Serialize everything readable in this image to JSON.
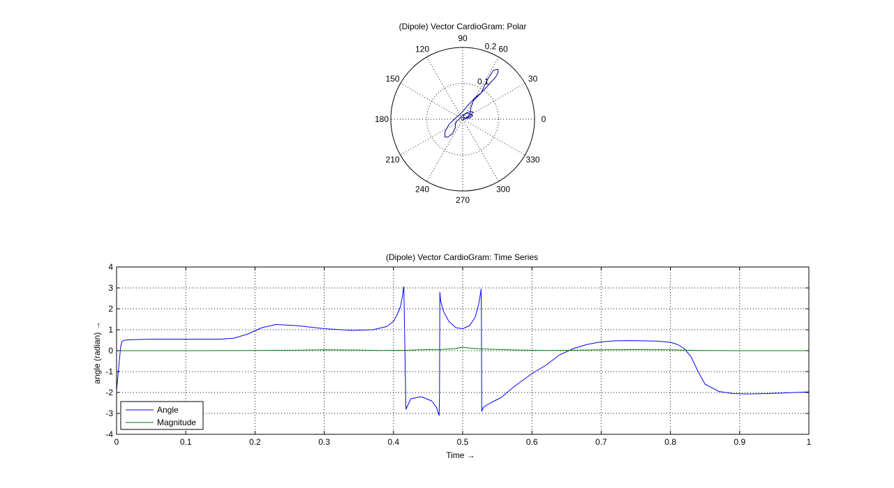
{
  "chart_data": [
    {
      "type": "polar",
      "title": "(Dipole) Vector CardioGram: Polar",
      "r_max": 0.2,
      "r_ticks": [
        0.1,
        0.2
      ],
      "r_tick_labels": [
        "0.1",
        "0.2"
      ],
      "angle_ticks": [
        0,
        30,
        60,
        90,
        120,
        150,
        180,
        210,
        240,
        270,
        300,
        330
      ],
      "angle_tick_labels": [
        "0",
        "30",
        "60",
        "90",
        "120",
        "150",
        "180",
        "210",
        "240",
        "270",
        "300",
        "330"
      ],
      "grid": true,
      "series": [
        {
          "color": "#00008b",
          "theta_deg": [
            0,
            5,
            15,
            25,
            35,
            45,
            60,
            70,
            75,
            72,
            55,
            35,
            20,
            10,
            20,
            25,
            35,
            55,
            60,
            55,
            53,
            52,
            53,
            55,
            58,
            58,
            57,
            56,
            55,
            60,
            70,
            100,
            170,
            200,
            215,
            225,
            230,
            235,
            228,
            215,
            200,
            180,
            100,
            60,
            45,
            35,
            25,
            10
          ],
          "r": [
            0.0,
            0.008,
            0.01,
            0.009,
            0.008,
            0.006,
            0.004,
            0.005,
            0.01,
            0.015,
            0.02,
            0.025,
            0.03,
            0.02,
            0.01,
            0.015,
            0.025,
            0.04,
            0.06,
            0.09,
            0.12,
            0.15,
            0.165,
            0.17,
            0.16,
            0.13,
            0.11,
            0.1,
            0.09,
            0.07,
            0.04,
            0.018,
            0.02,
            0.04,
            0.06,
            0.07,
            0.065,
            0.05,
            0.03,
            0.025,
            0.02,
            0.01,
            0.01,
            0.02,
            0.03,
            0.035,
            0.025,
            0.01
          ]
        }
      ]
    },
    {
      "type": "line",
      "title": "(Dipole) Vector CardioGram: Time Series",
      "xlabel": "Time →",
      "ylabel": "angle (radian) →",
      "xlim": [
        0,
        1
      ],
      "ylim": [
        -4,
        4
      ],
      "xticks": [
        0,
        0.1,
        0.2,
        0.3,
        0.4,
        0.5,
        0.6,
        0.7,
        0.8,
        0.9,
        1
      ],
      "xtick_labels": [
        "0",
        "0.1",
        "0.2",
        "0.3",
        "0.4",
        "0.5",
        "0.6",
        "0.7",
        "0.8",
        "0.9",
        "1"
      ],
      "yticks": [
        -4,
        -3,
        -2,
        -1,
        0,
        1,
        2,
        3,
        4
      ],
      "ytick_labels": [
        "-4",
        "-3",
        "-2",
        "-1",
        "0",
        "1",
        "2",
        "3",
        "4"
      ],
      "grid": true,
      "legend": "bottom-left",
      "series": [
        {
          "name": "Angle",
          "color": "#0000ff",
          "x": [
            0,
            0.002,
            0.004,
            0.006,
            0.008,
            0.012,
            0.02,
            0.05,
            0.1,
            0.15,
            0.17,
            0.19,
            0.21,
            0.23,
            0.26,
            0.3,
            0.34,
            0.37,
            0.39,
            0.4,
            0.405,
            0.41,
            0.413,
            0.4145,
            0.415,
            0.4155,
            0.418,
            0.425,
            0.44,
            0.455,
            0.462,
            0.465,
            0.466,
            0.4665,
            0.467,
            0.468,
            0.472,
            0.48,
            0.49,
            0.5,
            0.51,
            0.518,
            0.523,
            0.526,
            0.5265,
            0.527,
            0.5275,
            0.53,
            0.54,
            0.555,
            0.575,
            0.6,
            0.62,
            0.64,
            0.66,
            0.68,
            0.7,
            0.72,
            0.74,
            0.76,
            0.78,
            0.8,
            0.81,
            0.82,
            0.83,
            0.84,
            0.85,
            0.87,
            0.89,
            0.91,
            0.93,
            0.96,
            1.0
          ],
          "y": [
            -1.9,
            -1.2,
            -0.5,
            0.2,
            0.45,
            0.5,
            0.52,
            0.55,
            0.55,
            0.55,
            0.6,
            0.8,
            1.1,
            1.25,
            1.2,
            1.05,
            0.97,
            1.0,
            1.15,
            1.4,
            1.7,
            2.1,
            2.6,
            3.0,
            3.05,
            2.0,
            -2.8,
            -2.3,
            -2.2,
            -2.4,
            -2.7,
            -3.0,
            -3.1,
            -2.0,
            2.8,
            2.4,
            1.9,
            1.4,
            1.1,
            1.05,
            1.2,
            1.6,
            2.2,
            2.8,
            2.95,
            1.8,
            -2.9,
            -2.7,
            -2.5,
            -2.25,
            -1.7,
            -1.1,
            -0.7,
            -0.2,
            0.1,
            0.3,
            0.42,
            0.47,
            0.48,
            0.47,
            0.46,
            0.4,
            0.3,
            0.1,
            -0.3,
            -1.0,
            -1.6,
            -1.95,
            -2.05,
            -2.07,
            -2.06,
            -2.03,
            -1.97
          ]
        },
        {
          "name": "Magnitude",
          "color": "#007f00",
          "x": [
            0,
            0.02,
            0.1,
            0.2,
            0.26,
            0.3,
            0.34,
            0.38,
            0.42,
            0.45,
            0.47,
            0.49,
            0.5,
            0.51,
            0.53,
            0.55,
            0.58,
            0.62,
            0.66,
            0.7,
            0.75,
            0.8,
            0.84,
            0.9,
            1.0
          ],
          "y": [
            0.0,
            0.0,
            0.0,
            0.01,
            0.02,
            0.04,
            0.03,
            0.01,
            0.02,
            0.05,
            0.06,
            0.1,
            0.17,
            0.12,
            0.08,
            0.06,
            0.03,
            0.01,
            0.02,
            0.04,
            0.05,
            0.04,
            0.01,
            0.0,
            0.0
          ]
        }
      ]
    }
  ]
}
